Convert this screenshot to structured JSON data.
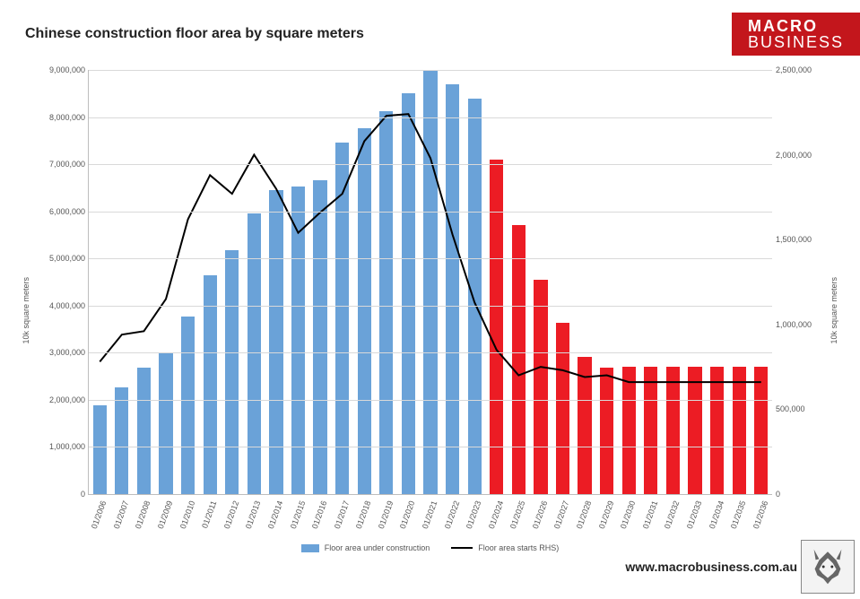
{
  "title": "Chinese construction floor area by square meters",
  "brand_top": "MACRO",
  "brand_bottom": "BUSINESS",
  "footer_url": "www.macrobusiness.com.au",
  "chart": {
    "type": "bar+line",
    "background_color": "#ffffff",
    "grid_color": "#d9d9d9",
    "axis_color": "#bdbdbd",
    "text_color": "#555555",
    "left_axis_label": "10k square meters",
    "right_axis_label": "10k square meters",
    "y_left": {
      "min": 0,
      "max": 9000000,
      "step": 1000000
    },
    "y_right": {
      "min": 0,
      "max": 2500000,
      "step": 500000
    },
    "bar_width": 0.62,
    "bar_color_historical": "#6aa2d8",
    "bar_color_forecast": "#ec1c24",
    "line_color": "#000000",
    "line_width": 2,
    "historical_until_index": 17,
    "categories": [
      "01/2006",
      "01/2007",
      "01/2008",
      "01/2009",
      "01/2010",
      "01/2011",
      "01/2012",
      "01/2013",
      "01/2014",
      "01/2015",
      "01/2016",
      "01/2017",
      "01/2018",
      "01/2019",
      "01/2020",
      "01/2021",
      "01/2022",
      "01/2023",
      "01/2024",
      "01/2025",
      "01/2026",
      "01/2027",
      "01/2028",
      "01/2029",
      "01/2030",
      "01/2031",
      "01/2032",
      "01/2033",
      "01/2034",
      "01/2035",
      "01/2036"
    ],
    "bars_values": [
      1880000,
      2260000,
      2680000,
      3000000,
      3760000,
      4640000,
      5180000,
      5960000,
      6460000,
      6520000,
      6660000,
      7450000,
      7760000,
      8120000,
      8500000,
      9000000,
      8700000,
      8400000,
      7100000,
      5700000,
      4550000,
      3640000,
      2920000,
      2680000,
      2700000,
      2700000,
      2700000,
      2700000,
      2700000,
      2700000,
      2700000
    ],
    "line_values_right": [
      780000,
      940000,
      960000,
      1150000,
      1620000,
      1880000,
      1770000,
      2000000,
      1800000,
      1540000,
      1660000,
      1770000,
      2080000,
      2230000,
      2240000,
      1980000,
      1530000,
      1130000,
      850000,
      700000,
      750000,
      730000,
      690000,
      700000,
      660000,
      660000,
      660000,
      660000,
      660000,
      660000,
      660000
    ],
    "legend": {
      "series1": "Floor area under construction",
      "series2": "Floor area starts RHS)"
    }
  }
}
